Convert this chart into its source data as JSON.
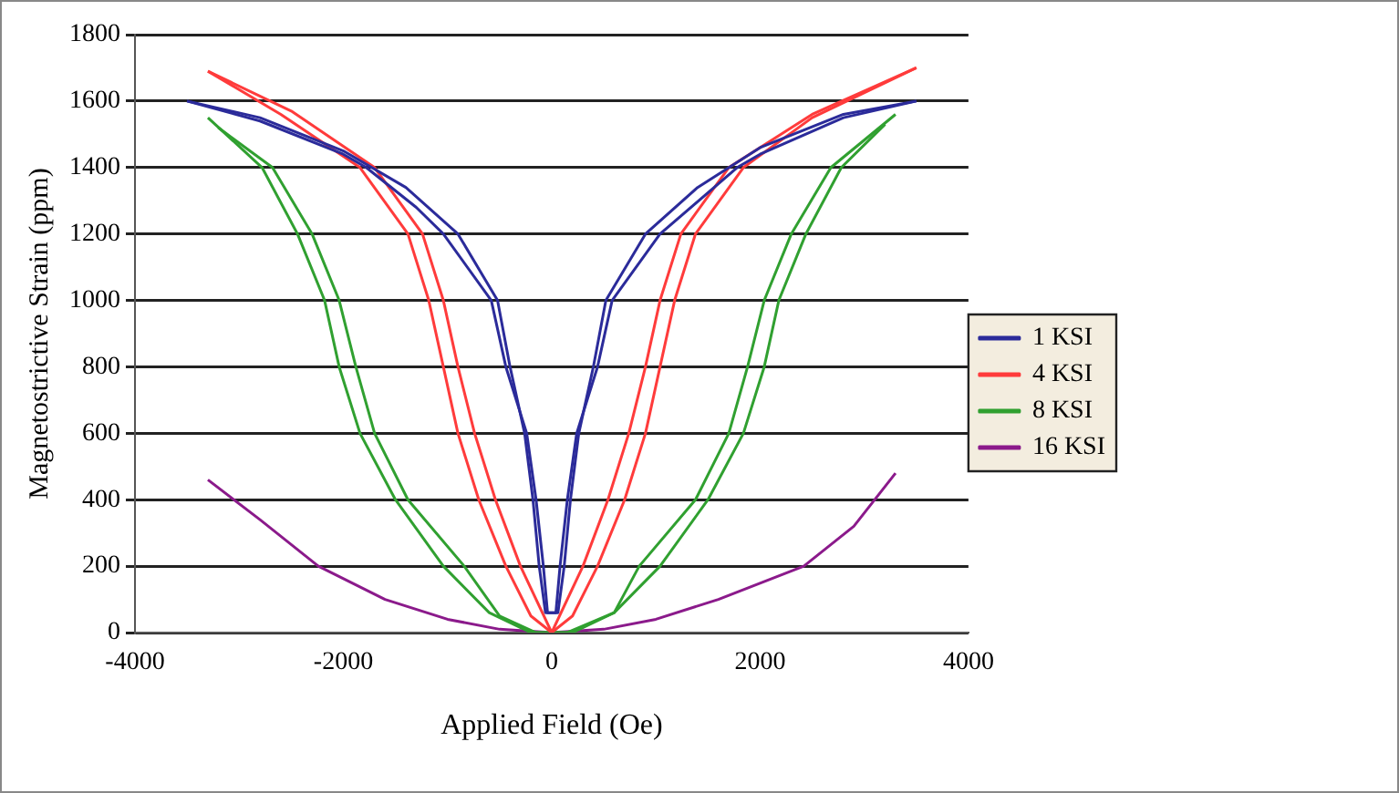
{
  "chart_data": {
    "type": "line",
    "xlabel": "Applied Field (Oe)",
    "ylabel": "Magnetostrictive Strain (ppm)",
    "xlim": [
      -4000,
      4000
    ],
    "xticks": [
      -4000,
      -2000,
      0,
      2000,
      4000
    ],
    "ylim": [
      0,
      1800
    ],
    "yticks": [
      0,
      200,
      400,
      600,
      800,
      1000,
      1200,
      1400,
      1600,
      1800
    ],
    "grid": "y",
    "legend": "right",
    "marker": "none",
    "line_style": "solid",
    "series": [
      {
        "name": "1 KSI",
        "color": "#2b2b9a",
        "x": [
          -3500,
          -2800,
          -2000,
          -1780,
          -1300,
          -1040,
          -580,
          -440,
          -240,
          -150,
          -80,
          -40,
          60,
          120,
          180,
          260,
          400,
          520,
          900,
          1400,
          2000,
          2800,
          3500
        ],
        "values": [
          1600,
          1540,
          1440,
          1400,
          1280,
          1200,
          1000,
          800,
          600,
          400,
          200,
          60,
          60,
          200,
          400,
          600,
          800,
          1000,
          1200,
          1340,
          1460,
          1560,
          1600
        ]
      },
      {
        "color": "#2b2b9a",
        "x": [
          -3500,
          -2800,
          -2000,
          -1400,
          -900,
          -520,
          -400,
          -260,
          -180,
          -120,
          -60,
          40,
          80,
          150,
          240,
          440,
          580,
          1040,
          1780,
          2000,
          2800,
          3500
        ],
        "values": [
          1600,
          1550,
          1450,
          1340,
          1200,
          1000,
          800,
          600,
          400,
          200,
          60,
          60,
          200,
          400,
          600,
          800,
          1000,
          1200,
          1400,
          1440,
          1550,
          1600
        ]
      },
      {
        "name": "4 KSI",
        "color": "#ff3b3b",
        "x": [
          -3300,
          -2600,
          -1840,
          -1380,
          -1180,
          -1040,
          -900,
          -700,
          -440,
          -200,
          0,
          300,
          540,
          740,
          900,
          1040,
          1240,
          1700,
          2500,
          3500
        ],
        "values": [
          1690,
          1560,
          1400,
          1200,
          1000,
          800,
          600,
          400,
          200,
          50,
          0,
          200,
          400,
          600,
          800,
          1000,
          1200,
          1400,
          1560,
          1700
        ]
      },
      {
        "color": "#ff3b3b",
        "x": [
          -3300,
          -2500,
          -1700,
          -1240,
          -1040,
          -900,
          -740,
          -540,
          -300,
          0,
          200,
          440,
          700,
          900,
          1040,
          1180,
          1380,
          1840,
          2500,
          3500
        ],
        "values": [
          1690,
          1570,
          1400,
          1200,
          1000,
          800,
          600,
          400,
          200,
          0,
          50,
          200,
          400,
          600,
          800,
          1000,
          1200,
          1400,
          1550,
          1700
        ]
      },
      {
        "name": "8 KSI",
        "color": "#30a030",
        "x": [
          -3300,
          -2780,
          -2440,
          -2180,
          -2040,
          -1840,
          -1500,
          -1040,
          -600,
          -200,
          200,
          600,
          840,
          1380,
          1700,
          1880,
          2040,
          2300,
          2680,
          3300
        ],
        "values": [
          1550,
          1400,
          1200,
          1000,
          800,
          600,
          400,
          200,
          60,
          0,
          0,
          60,
          200,
          400,
          600,
          800,
          1000,
          1200,
          1400,
          1560
        ]
      },
      {
        "color": "#30a030",
        "x": [
          -3200,
          -2680,
          -2300,
          -2040,
          -1880,
          -1700,
          -1380,
          -840,
          -500,
          -150,
          150,
          600,
          1040,
          1500,
          1840,
          2040,
          2180,
          2440,
          2780,
          3200
        ],
        "values": [
          1520,
          1400,
          1200,
          1000,
          800,
          600,
          400,
          200,
          50,
          0,
          0,
          60,
          200,
          400,
          600,
          800,
          1000,
          1200,
          1400,
          1530
        ]
      },
      {
        "name": "16 KSI",
        "color": "#8b1a8b",
        "x": [
          -3300,
          -2800,
          -2240,
          -1600,
          -1000,
          -500,
          0,
          500,
          1000,
          1600,
          2420,
          2900,
          3300
        ],
        "values": [
          460,
          340,
          200,
          100,
          40,
          10,
          0,
          10,
          40,
          100,
          200,
          320,
          480
        ]
      }
    ]
  }
}
